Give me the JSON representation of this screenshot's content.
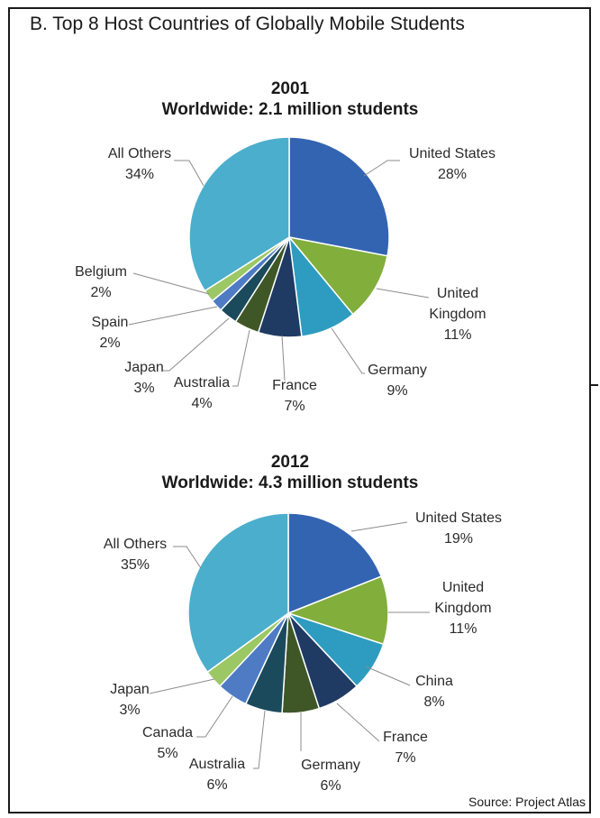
{
  "header": {
    "title": "B. Top 8 Host Countries of Globally Mobile Students"
  },
  "footer": {
    "source": "Source: Project Atlas"
  },
  "colors": {
    "frame": "#1a1a1a",
    "leader": "#8c8c8c",
    "slice_border": "#ffffff"
  },
  "chart_data": [
    {
      "type": "pie",
      "title": "2001",
      "subtitle": "Worldwide: 2.1 million students",
      "slices": [
        {
          "label": "United States",
          "value": 28,
          "pct": "28%",
          "color": "#3364B1"
        },
        {
          "label": "United Kingdom",
          "value": 11,
          "pct": "11%",
          "color": "#82AE3C"
        },
        {
          "label": "Germany",
          "value": 9,
          "pct": "9%",
          "color": "#2E9CC0"
        },
        {
          "label": "France",
          "value": 7,
          "pct": "7%",
          "color": "#1F3A63"
        },
        {
          "label": "Australia",
          "value": 4,
          "pct": "4%",
          "color": "#3F5727"
        },
        {
          "label": "Japan",
          "value": 3,
          "pct": "3%",
          "color": "#1B4A5C"
        },
        {
          "label": "Spain",
          "value": 2,
          "pct": "2%",
          "color": "#4E7BC4"
        },
        {
          "label": "Belgium",
          "value": 2,
          "pct": "2%",
          "color": "#9BC765"
        },
        {
          "label": "All Others",
          "value": 34,
          "pct": "34%",
          "color": "#4BAECC"
        }
      ]
    },
    {
      "type": "pie",
      "title": "2012",
      "subtitle": "Worldwide: 4.3 million students",
      "slices": [
        {
          "label": "United States",
          "value": 19,
          "pct": "19%",
          "color": "#3364B1"
        },
        {
          "label": "United Kingdom",
          "value": 11,
          "pct": "11%",
          "color": "#82AE3C"
        },
        {
          "label": "China",
          "value": 8,
          "pct": "8%",
          "color": "#2E9CC0"
        },
        {
          "label": "France",
          "value": 7,
          "pct": "7%",
          "color": "#1F3A63"
        },
        {
          "label": "Germany",
          "value": 6,
          "pct": "6%",
          "color": "#3F5727"
        },
        {
          "label": "Australia",
          "value": 6,
          "pct": "6%",
          "color": "#1B4A5C"
        },
        {
          "label": "Canada",
          "value": 5,
          "pct": "5%",
          "color": "#4E7BC4"
        },
        {
          "label": "Japan",
          "value": 3,
          "pct": "3%",
          "color": "#9BC765"
        },
        {
          "label": "All Others",
          "value": 35,
          "pct": "35%",
          "color": "#4BAECC"
        }
      ]
    }
  ]
}
